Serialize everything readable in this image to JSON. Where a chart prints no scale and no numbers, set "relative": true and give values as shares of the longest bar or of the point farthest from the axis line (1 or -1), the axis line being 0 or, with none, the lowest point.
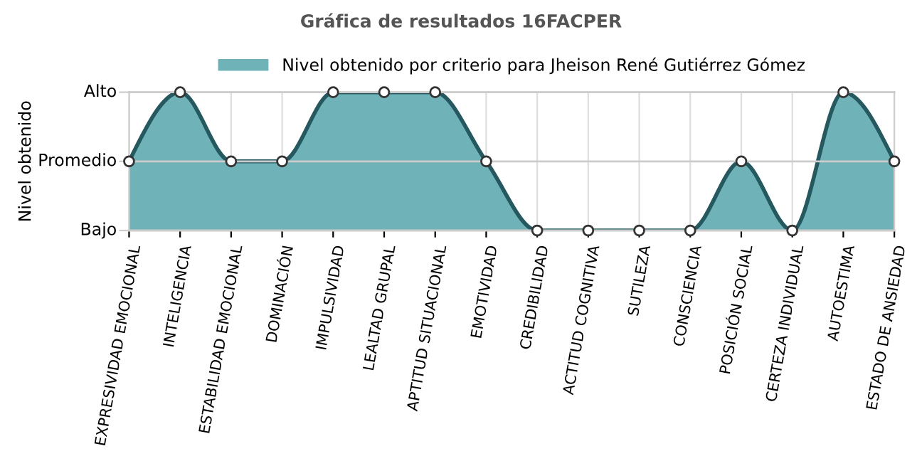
{
  "chart_data": {
    "type": "area",
    "title": "Gráfica de resultados 16FACPER",
    "ylabel": "Nivel obtenido",
    "categories": [
      "EXPRESIVIDAD EMOCIONAL",
      "INTELIGENCIA",
      "ESTABILIDAD EMOCIONAL",
      "DOMINACIÓN",
      "IMPULSIVIDAD",
      "LEALTAD GRUPAL",
      "APTITUD SITUACIONAL",
      "EMOTIVIDAD",
      "CREDIBILIDAD",
      "ACTITUD COGNITIVA",
      "SUTILEZA",
      "CONSCIENCIA",
      "POSICIÓN SOCIAL",
      "CERTEZA INDIVIDUAL",
      "AUTOESTIMA",
      "ESTADO DE ANSIEDAD"
    ],
    "series": [
      {
        "name": "Nivel obtenido por criterio para Jheison René Gutiérrez Gómez",
        "color": "#6fb3b8",
        "values": [
          0.5,
          1,
          0.5,
          0.5,
          1,
          1,
          1,
          0.5,
          0,
          0,
          0,
          0,
          0.5,
          0,
          1,
          0.5
        ]
      }
    ],
    "relative": true,
    "ref_lines": [
      {
        "axis": "y",
        "value": 0,
        "label": "Bajo",
        "color": "#cccccc"
      },
      {
        "axis": "y",
        "value": 0.5,
        "label": "Promedio",
        "color": "#cccccc"
      },
      {
        "axis": "y",
        "value": 1,
        "label": "Alto",
        "color": "#cccccc"
      }
    ],
    "grid": "x",
    "legend": "top",
    "marker": "circle",
    "line_style": "solid"
  }
}
